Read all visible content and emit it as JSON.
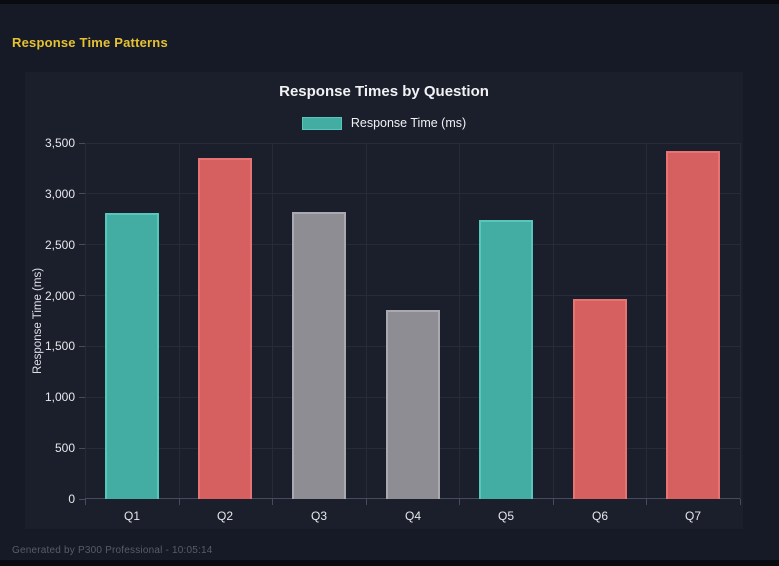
{
  "page": {
    "title": "Response Time Patterns",
    "footer": "Generated by P300 Professional - 10:05:14"
  },
  "colors": {
    "page_title": "#e6c233",
    "footer_text": "#565c6b",
    "background": "#161a26",
    "panel_background": "#1b1f2c",
    "gridline": "#272b39",
    "axis": "#464c5e",
    "tick_label": "#e8e8ec",
    "teal": "#43ada4",
    "teal_border": "#57c7bc",
    "red": "#d65f5f",
    "red_border": "#e87373",
    "gray": "#8d8d93",
    "gray_border": "#a9a9af"
  },
  "chart_data": {
    "type": "bar",
    "title": "Response Times by Question",
    "legend": [
      {
        "label": "Response Time (ms)",
        "color": "#43ada4",
        "border": "#57c7bc"
      }
    ],
    "legend_position": "top",
    "categories": [
      "Q1",
      "Q2",
      "Q3",
      "Q4",
      "Q5",
      "Q6",
      "Q7"
    ],
    "series": [
      {
        "name": "Response Time (ms)",
        "values": [
          2810,
          3350,
          2820,
          1860,
          2740,
          1970,
          3420
        ]
      }
    ],
    "bar_colors": [
      "#43ada4",
      "#d65f5f",
      "#8d8d93",
      "#8d8d93",
      "#43ada4",
      "#d65f5f",
      "#d65f5f"
    ],
    "bar_border_colors": [
      "#57c7bc",
      "#e87373",
      "#a9a9af",
      "#a9a9af",
      "#57c7bc",
      "#e87373",
      "#e87373"
    ],
    "xlabel": "",
    "ylabel": "Response Time (ms)",
    "ylim": [
      0,
      3500
    ],
    "ytick_step": 500,
    "ytick_labels": [
      "0",
      "500",
      "1,000",
      "1,500",
      "2,000",
      "2,500",
      "3,000",
      "3,500"
    ],
    "grid": true
  }
}
